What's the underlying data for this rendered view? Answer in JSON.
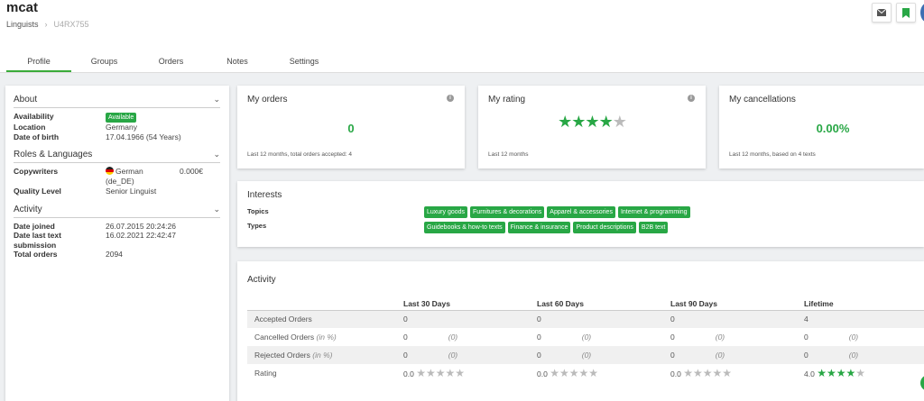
{
  "header": {
    "title": "mcat",
    "breadcrumb": {
      "parent": "Linguists",
      "current": "U4RX755"
    }
  },
  "top_buttons": [
    {
      "icon": "mail-icon"
    },
    {
      "icon": "bookmark-icon"
    }
  ],
  "tabs": [
    {
      "label": "Profile",
      "active": true
    },
    {
      "label": "Groups"
    },
    {
      "label": "Orders"
    },
    {
      "label": "Notes"
    },
    {
      "label": "Settings"
    }
  ],
  "about": {
    "heading": "About",
    "availability_label": "Availability",
    "availability_value": "Available",
    "location_label": "Location",
    "location_value": "Germany",
    "dob_label": "Date of birth",
    "dob_value": "17.04.1966 (54 Years)"
  },
  "roles": {
    "heading": "Roles & Languages",
    "copywriters_label": "Copywriters",
    "language_line1": "German",
    "language_line2": "(de_DE)",
    "rate": "0.000€",
    "quality_label": "Quality Level",
    "quality_value": "Senior Linguist"
  },
  "activity_side": {
    "heading": "Activity",
    "joined_label": "Date joined",
    "joined_value": "26.07.2015 20:24:26",
    "last_label_line1": "Date last text",
    "last_label_line2": "submission",
    "last_value": "16.02.2021 22:42:47",
    "total_label": "Total orders",
    "total_value": "2094"
  },
  "my_orders": {
    "title": "My orders",
    "value": "0",
    "footer": "Last 12 months, total orders accepted: 4"
  },
  "my_rating": {
    "title": "My rating",
    "stars": 4,
    "max_stars": 5,
    "footer": "Last 12 months"
  },
  "my_cancellations": {
    "title": "My cancellations",
    "value": "0.00%",
    "footer": "Last 12 months, based on 4 texts"
  },
  "interests": {
    "title": "Interests",
    "topics_label": "Topics",
    "topics": [
      "Luxury goods",
      "Furnitures & decorations",
      "Apparel & accessories",
      "Internet & programming"
    ],
    "types_label": "Types",
    "types": [
      "Guidebooks & how-to texts",
      "Finance & insurance",
      "Product descriptions",
      "B2B text"
    ]
  },
  "activity": {
    "title": "Activity",
    "columns": [
      "Last 30 Days",
      "Last 60 Days",
      "Last 90 Days",
      "Lifetime"
    ],
    "rows": {
      "accepted": {
        "label": "Accepted Orders",
        "values": [
          "0",
          "0",
          "0",
          "4"
        ]
      },
      "cancelled": {
        "label": "Cancelled Orders",
        "suffix": "(in %)",
        "values": [
          "0",
          "0",
          "0",
          "0"
        ],
        "extra": [
          "(0)",
          "(0)",
          "(0)",
          "(0)"
        ]
      },
      "rejected": {
        "label": "Rejected Orders",
        "suffix": "(in %)",
        "values": [
          "0",
          "0",
          "0",
          "0"
        ],
        "extra": [
          "(0)",
          "(0)",
          "(0)",
          "(0)"
        ]
      },
      "rating": {
        "label": "Rating",
        "values": [
          "0.0",
          "0.0",
          "0.0",
          "4.0"
        ],
        "stars": [
          0,
          0,
          0,
          4
        ]
      }
    }
  },
  "colors": {
    "accent": "#28a745",
    "tab_underline": "#3aab3a"
  }
}
